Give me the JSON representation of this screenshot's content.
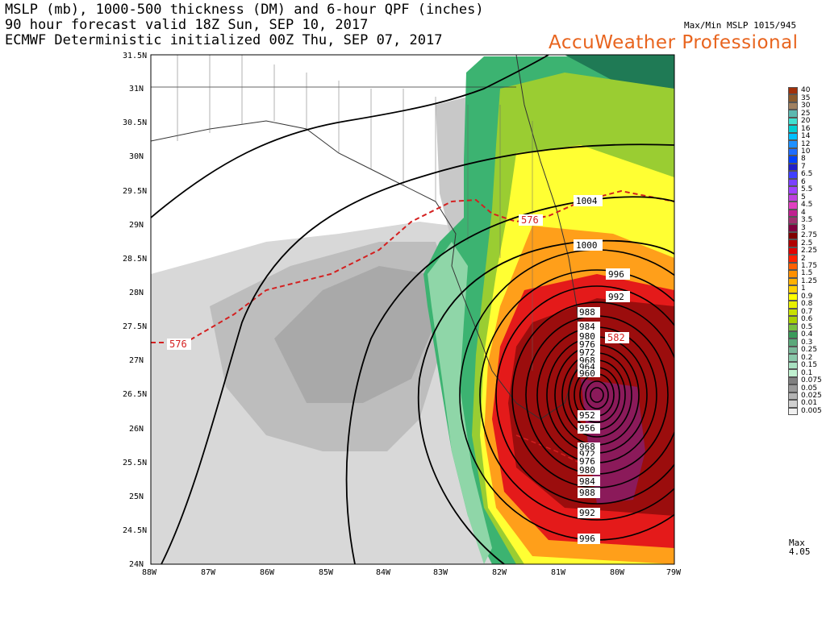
{
  "header": {
    "line1": "MSLP (mb), 1000-500 thickness (DM) and 6-hour QPF (inches)",
    "line2": "90 hour forecast valid 18Z Sun, SEP 10, 2017",
    "line3": "ECMWF Deterministic initialized 00Z Thu, SEP 07, 2017",
    "maxmin": "Max/Min MSLP 1015/945",
    "brand": "AccuWeather Professional"
  },
  "map": {
    "lat_labels": [
      "31.5N",
      "31N",
      "30.5N",
      "30N",
      "29.5N",
      "29N",
      "28.5N",
      "28N",
      "27.5N",
      "27N",
      "26.5N",
      "26N",
      "25.5N",
      "25N",
      "24.5N",
      "24N"
    ],
    "lon_labels": [
      "88W",
      "87W",
      "86W",
      "85W",
      "84W",
      "83W",
      "82W",
      "81W",
      "80W",
      "79W"
    ],
    "isobar_labels": [
      "1004",
      "1000",
      "996",
      "992",
      "988",
      "984",
      "980",
      "976",
      "972",
      "968",
      "964",
      "960",
      "952",
      "956",
      "968",
      "972",
      "976",
      "980",
      "984",
      "988",
      "992",
      "996"
    ],
    "thickness_labels": [
      "576",
      "576",
      "576",
      "582"
    ],
    "center_pressure_mb": 945,
    "colors": {
      "precip_heavy": "#8b1010",
      "precip_red": "#e01414",
      "precip_orange": "#ff8c00",
      "precip_yellow": "#ffff00",
      "precip_green": "#2e8b57",
      "thickness": "#d42020"
    }
  },
  "legend": {
    "levels": [
      "40",
      "35",
      "30",
      "25",
      "20",
      "16",
      "14",
      "12",
      "10",
      "8",
      "7",
      "6.5",
      "6",
      "5.5",
      "5",
      "4.5",
      "4",
      "3.5",
      "3",
      "2.75",
      "2.5",
      "2.25",
      "2",
      "1.75",
      "1.5",
      "1.25",
      "1",
      "0.9",
      "0.8",
      "0.7",
      "0.6",
      "0.5",
      "0.4",
      "0.3",
      "0.25",
      "0.2",
      "0.15",
      "0.1",
      "0.075",
      "0.05",
      "0.025",
      "0.01",
      "0.005"
    ],
    "colors": [
      "#a0300a",
      "#8b5a2b",
      "#a08060",
      "#5cb8b0",
      "#40e0d0",
      "#00ced1",
      "#00bfff",
      "#1e90ff",
      "#1e6cff",
      "#0040ff",
      "#2020c8",
      "#4040ff",
      "#7a40ff",
      "#a040ff",
      "#c040e0",
      "#e040c0",
      "#c02090",
      "#a03070",
      "#800040",
      "#800000",
      "#b00000",
      "#e00000",
      "#ff2000",
      "#ff6000",
      "#ff9000",
      "#ffb000",
      "#ffd000",
      "#ffff00",
      "#e8f000",
      "#c8e000",
      "#a8d000",
      "#78c040",
      "#3a9a5a",
      "#5aa87a",
      "#7ab89a",
      "#8ac8aa",
      "#a8e0c0",
      "#c0f0d0",
      "#808080",
      "#9a9a9a",
      "#b4b4b4",
      "#d0d0d0",
      "#f0f0f0"
    ],
    "max_label": "Max",
    "max_value": "4.05"
  }
}
